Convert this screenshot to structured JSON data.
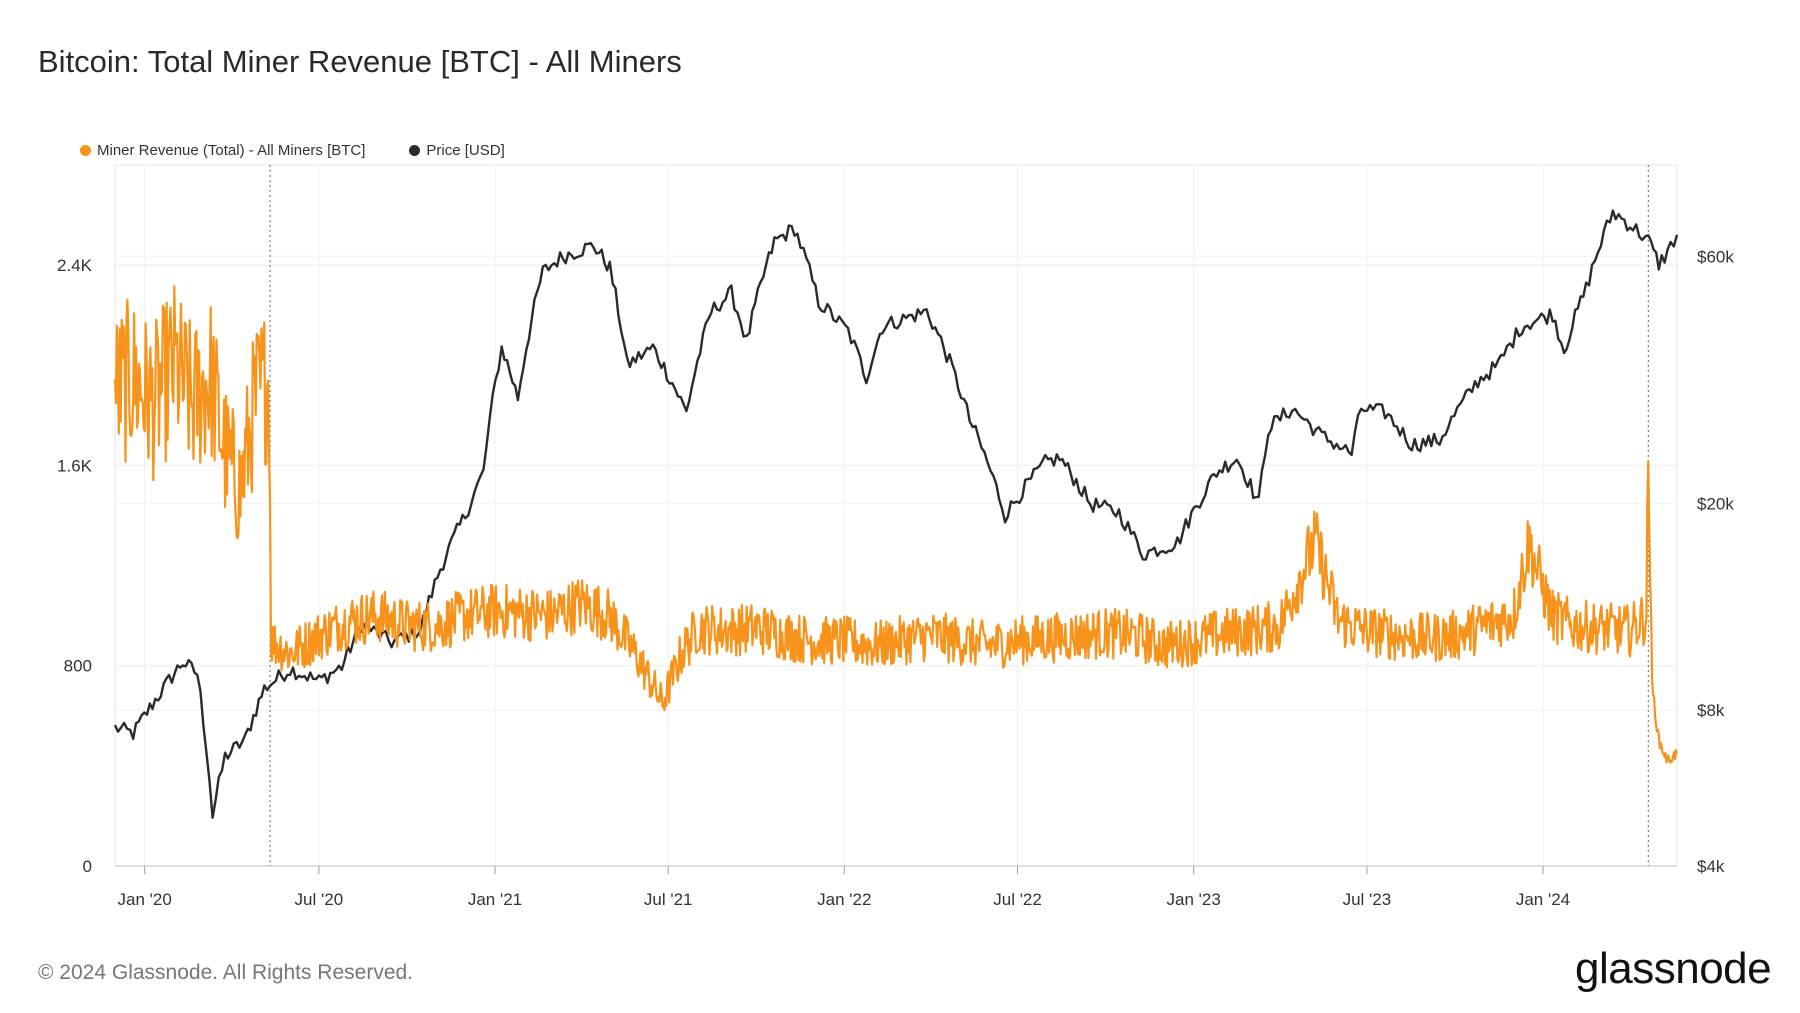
{
  "header": {
    "title": "Bitcoin: Total Miner Revenue [BTC] - All Miners"
  },
  "legend": [
    {
      "label": "Miner Revenue (Total) - All Miners [BTC]",
      "color": "#f7931a"
    },
    {
      "label": "Price [USD]",
      "color": "#2b2b2b"
    }
  ],
  "footer": {
    "copyright": "© 2024 Glassnode. All Rights Reserved.",
    "brand": "glassnode"
  },
  "chart_data": {
    "type": "line",
    "title": "Bitcoin: Total Miner Revenue [BTC] - All Miners",
    "x_range": [
      "2019-12-01",
      "2024-05-20"
    ],
    "grid": true,
    "legend_position": "top-left",
    "x_ticks": [
      {
        "label": "Jan '20",
        "date": "2020-01-01"
      },
      {
        "label": "Jul '20",
        "date": "2020-07-01"
      },
      {
        "label": "Jan '21",
        "date": "2021-01-01"
      },
      {
        "label": "Jul '21",
        "date": "2021-07-01"
      },
      {
        "label": "Jan '22",
        "date": "2022-01-01"
      },
      {
        "label": "Jul '22",
        "date": "2022-07-01"
      },
      {
        "label": "Jan '23",
        "date": "2023-01-01"
      },
      {
        "label": "Jul '23",
        "date": "2023-07-01"
      },
      {
        "label": "Jan '24",
        "date": "2024-01-01"
      }
    ],
    "left_axis": {
      "ylim": [
        0,
        2800
      ],
      "ticks": [
        {
          "label": "0",
          "value": 0
        },
        {
          "label": "800",
          "value": 800
        },
        {
          "label": "1.6K",
          "value": 1600
        },
        {
          "label": "2.4K",
          "value": 2400
        }
      ]
    },
    "right_axis": {
      "scale": "log",
      "ylim": [
        4000,
        90000
      ],
      "ticks": [
        {
          "label": "$4k",
          "value": 4000
        },
        {
          "label": "$8k",
          "value": 8000
        },
        {
          "label": "$20k",
          "value": 20000
        },
        {
          "label": "$60k",
          "value": 60000
        }
      ]
    },
    "halving_markers": [
      "2020-05-11",
      "2024-04-20"
    ],
    "series": [
      {
        "name": "Miner Revenue (Total) - All Miners [BTC]",
        "axis": "left",
        "color": "#f7931a",
        "points": [
          [
            "2019-12-01",
            1900
          ],
          [
            "2019-12-20",
            1950
          ],
          [
            "2020-01-10",
            1850
          ],
          [
            "2020-02-01",
            2000
          ],
          [
            "2020-02-20",
            1850
          ],
          [
            "2020-03-10",
            1950
          ],
          [
            "2020-03-25",
            1650
          ],
          [
            "2020-04-10",
            1500
          ],
          [
            "2020-04-25",
            1850
          ],
          [
            "2020-05-10",
            1950
          ],
          [
            "2020-05-12",
            900
          ],
          [
            "2020-06-01",
            850
          ],
          [
            "2020-07-01",
            920
          ],
          [
            "2020-08-01",
            980
          ],
          [
            "2020-09-01",
            1000
          ],
          [
            "2020-10-01",
            960
          ],
          [
            "2020-11-01",
            960
          ],
          [
            "2020-12-01",
            1000
          ],
          [
            "2021-01-01",
            1020
          ],
          [
            "2021-02-01",
            1010
          ],
          [
            "2021-03-01",
            1000
          ],
          [
            "2021-04-01",
            1050
          ],
          [
            "2021-05-01",
            1000
          ],
          [
            "2021-06-01",
            820
          ],
          [
            "2021-06-25",
            650
          ],
          [
            "2021-07-15",
            850
          ],
          [
            "2021-08-01",
            950
          ],
          [
            "2021-09-01",
            940
          ],
          [
            "2021-10-01",
            950
          ],
          [
            "2021-11-01",
            920
          ],
          [
            "2021-12-01",
            900
          ],
          [
            "2022-01-01",
            900
          ],
          [
            "2022-02-01",
            880
          ],
          [
            "2022-03-01",
            900
          ],
          [
            "2022-04-01",
            920
          ],
          [
            "2022-05-01",
            900
          ],
          [
            "2022-06-01",
            880
          ],
          [
            "2022-07-01",
            900
          ],
          [
            "2022-08-01",
            910
          ],
          [
            "2022-09-01",
            920
          ],
          [
            "2022-10-01",
            930
          ],
          [
            "2022-11-01",
            920
          ],
          [
            "2022-12-01",
            880
          ],
          [
            "2023-01-01",
            900
          ],
          [
            "2023-02-01",
            930
          ],
          [
            "2023-03-01",
            940
          ],
          [
            "2023-04-01",
            960
          ],
          [
            "2023-05-08",
            1300
          ],
          [
            "2023-06-01",
            980
          ],
          [
            "2023-07-01",
            940
          ],
          [
            "2023-08-01",
            920
          ],
          [
            "2023-09-01",
            910
          ],
          [
            "2023-10-01",
            920
          ],
          [
            "2023-11-01",
            960
          ],
          [
            "2023-12-01",
            1000
          ],
          [
            "2023-12-17",
            1290
          ],
          [
            "2024-01-10",
            1000
          ],
          [
            "2024-02-01",
            960
          ],
          [
            "2024-03-01",
            950
          ],
          [
            "2024-04-01",
            940
          ],
          [
            "2024-04-18",
            1000
          ],
          [
            "2024-04-20",
            1630
          ],
          [
            "2024-04-24",
            720
          ],
          [
            "2024-05-01",
            500
          ],
          [
            "2024-05-10",
            420
          ],
          [
            "2024-05-20",
            450
          ]
        ]
      },
      {
        "name": "Price [USD]",
        "axis": "right",
        "color": "#2b2b2b",
        "points": [
          [
            "2019-12-01",
            7400
          ],
          [
            "2019-12-20",
            7200
          ],
          [
            "2020-01-15",
            8500
          ],
          [
            "2020-02-10",
            9900
          ],
          [
            "2020-02-25",
            9400
          ],
          [
            "2020-03-12",
            5000
          ],
          [
            "2020-03-25",
            6500
          ],
          [
            "2020-04-15",
            7000
          ],
          [
            "2020-05-05",
            8800
          ],
          [
            "2020-06-01",
            9600
          ],
          [
            "2020-07-01",
            9100
          ],
          [
            "2020-07-25",
            9700
          ],
          [
            "2020-08-15",
            11700
          ],
          [
            "2020-09-15",
            10800
          ],
          [
            "2020-10-15",
            11400
          ],
          [
            "2020-11-05",
            15000
          ],
          [
            "2020-12-01",
            19000
          ],
          [
            "2020-12-20",
            23000
          ],
          [
            "2021-01-08",
            40000
          ],
          [
            "2021-01-25",
            32000
          ],
          [
            "2021-02-20",
            56000
          ],
          [
            "2021-03-13",
            60000
          ],
          [
            "2021-04-14",
            63000
          ],
          [
            "2021-05-01",
            57000
          ],
          [
            "2021-05-19",
            37000
          ],
          [
            "2021-06-15",
            40000
          ],
          [
            "2021-07-20",
            30000
          ],
          [
            "2021-08-15",
            47000
          ],
          [
            "2021-09-05",
            51000
          ],
          [
            "2021-09-21",
            41000
          ],
          [
            "2021-10-20",
            64000
          ],
          [
            "2021-11-10",
            68000
          ],
          [
            "2021-12-05",
            49000
          ],
          [
            "2022-01-05",
            43000
          ],
          [
            "2022-01-24",
            35000
          ],
          [
            "2022-02-10",
            44000
          ],
          [
            "2022-03-28",
            47000
          ],
          [
            "2022-04-15",
            40000
          ],
          [
            "2022-05-12",
            29000
          ],
          [
            "2022-06-18",
            19000
          ],
          [
            "2022-07-30",
            24000
          ],
          [
            "2022-08-14",
            24500
          ],
          [
            "2022-09-15",
            20000
          ],
          [
            "2022-10-15",
            19200
          ],
          [
            "2022-11-09",
            16000
          ],
          [
            "2022-12-15",
            16800
          ],
          [
            "2023-01-25",
            23000
          ],
          [
            "2023-02-15",
            24500
          ],
          [
            "2023-03-10",
            20000
          ],
          [
            "2023-03-20",
            28000
          ],
          [
            "2023-04-14",
            30500
          ],
          [
            "2023-05-15",
            27000
          ],
          [
            "2023-06-15",
            25000
          ],
          [
            "2023-06-25",
            30500
          ],
          [
            "2023-07-20",
            30000
          ],
          [
            "2023-08-17",
            26000
          ],
          [
            "2023-09-15",
            26500
          ],
          [
            "2023-10-25",
            34500
          ],
          [
            "2023-11-15",
            37000
          ],
          [
            "2023-12-10",
            44000
          ],
          [
            "2024-01-11",
            46500
          ],
          [
            "2024-01-23",
            39500
          ],
          [
            "2024-02-15",
            52000
          ],
          [
            "2024-03-14",
            73000
          ],
          [
            "2024-04-01",
            69000
          ],
          [
            "2024-04-20",
            64500
          ],
          [
            "2024-05-01",
            58000
          ],
          [
            "2024-05-10",
            61000
          ],
          [
            "2024-05-20",
            66000
          ]
        ]
      }
    ]
  }
}
